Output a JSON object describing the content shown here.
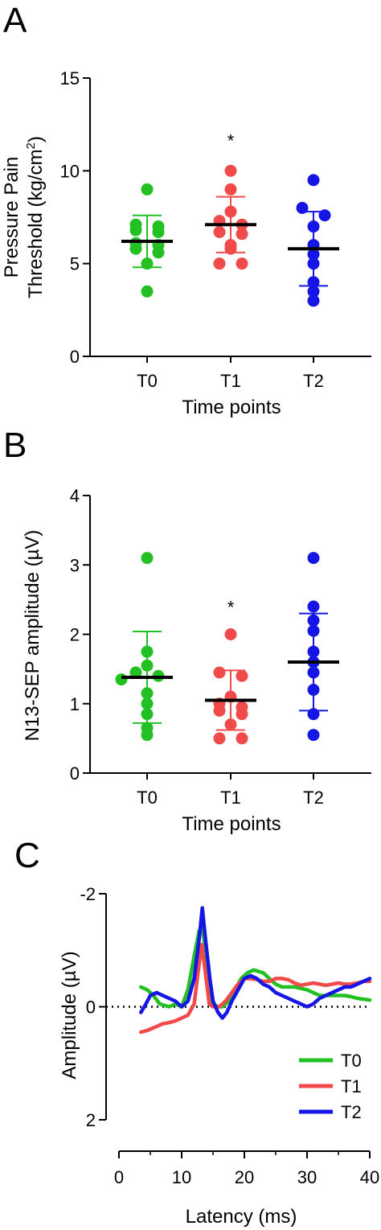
{
  "colors": {
    "T0": "#22c022",
    "T1": "#f04a4a",
    "T2": "#1515e6",
    "axis": "#000000"
  },
  "chart_data": [
    {
      "panel_label": "A",
      "type": "scatter",
      "categories": [
        "T0",
        "T1",
        "T2"
      ],
      "xlabel": "Time points",
      "ylabel_lines": [
        "Pressure Pain",
        "Threshold (kg/cm",
        "2",
        ")"
      ],
      "ylim": [
        0,
        15
      ],
      "yticks": [
        0,
        5,
        10,
        15
      ],
      "annotation": "*",
      "annotation_category": "T1",
      "annotation_y": 11.3,
      "series": [
        {
          "category": "T0",
          "points": [
            9.0,
            7.1,
            7.0,
            6.8,
            6.7,
            6.1,
            6.0,
            5.8,
            5.6,
            5.0,
            3.5
          ],
          "mean": 6.2,
          "sd": 1.4
        },
        {
          "category": "T1",
          "points": [
            10.0,
            9.0,
            7.8,
            7.3,
            7.1,
            6.7,
            6.6,
            6.0,
            5.8,
            5.0,
            5.0
          ],
          "mean": 7.1,
          "sd": 1.5
        },
        {
          "category": "T2",
          "points": [
            9.5,
            8.0,
            7.6,
            7.0,
            6.0,
            5.5,
            5.0,
            4.0,
            3.5,
            3.0
          ],
          "mean": 5.8,
          "sd": 2.0
        }
      ]
    },
    {
      "panel_label": "B",
      "type": "scatter",
      "categories": [
        "T0",
        "T1",
        "T2"
      ],
      "xlabel": "Time points",
      "ylabel": "N13-SEP amplitude (µV)",
      "ylim": [
        0,
        4
      ],
      "yticks": [
        0,
        1,
        2,
        3,
        4
      ],
      "annotation": "*",
      "annotation_category": "T1",
      "annotation_y": 2.3,
      "series": [
        {
          "category": "T0",
          "points": [
            3.1,
            1.75,
            1.55,
            1.45,
            1.4,
            1.35,
            1.15,
            1.0,
            0.85,
            0.65,
            0.55
          ],
          "mean": 1.38,
          "sd": 0.66
        },
        {
          "category": "T1",
          "points": [
            2.0,
            1.45,
            1.4,
            1.1,
            1.0,
            0.95,
            0.9,
            0.85,
            0.7,
            0.5,
            0.5
          ],
          "mean": 1.05,
          "sd": 0.43
        },
        {
          "category": "T2",
          "points": [
            3.1,
            2.4,
            2.2,
            2.05,
            1.75,
            1.6,
            1.45,
            1.2,
            0.85,
            0.55
          ],
          "mean": 1.6,
          "sd": 0.7
        }
      ]
    },
    {
      "panel_label": "C",
      "type": "line",
      "xlabel": "Latency (ms)",
      "ylabel": "Amplitude (µV)",
      "xlim": [
        0,
        40
      ],
      "xticks": [
        0,
        10,
        20,
        30,
        40
      ],
      "ylim": [
        -2,
        2
      ],
      "ytick_labels": [
        "-2",
        "0",
        "2"
      ],
      "yticks": [
        -2,
        0,
        2
      ],
      "y_inverted": true,
      "zero_line": "dotted",
      "legend_position": "bottom-right",
      "series": [
        {
          "name": "T0",
          "points": [
            [
              3.5,
              -0.35
            ],
            [
              4.5,
              -0.3
            ],
            [
              5.5,
              -0.2
            ],
            [
              6.5,
              -0.05
            ],
            [
              8,
              0.0
            ],
            [
              9,
              -0.05
            ],
            [
              10,
              0.0
            ],
            [
              11,
              -0.3
            ],
            [
              12,
              -0.9
            ],
            [
              12.8,
              -1.35
            ],
            [
              13.3,
              -1.4
            ],
            [
              13.8,
              -1.0
            ],
            [
              14.5,
              -0.4
            ],
            [
              15,
              -0.05
            ],
            [
              15.8,
              0.0
            ],
            [
              16.5,
              0.0
            ],
            [
              17.5,
              -0.1
            ],
            [
              18.5,
              -0.3
            ],
            [
              19.5,
              -0.5
            ],
            [
              20.5,
              -0.6
            ],
            [
              21.5,
              -0.65
            ],
            [
              23,
              -0.6
            ],
            [
              24,
              -0.5
            ],
            [
              25,
              -0.4
            ],
            [
              26,
              -0.35
            ],
            [
              27,
              -0.35
            ],
            [
              28,
              -0.35
            ],
            [
              30,
              -0.3
            ],
            [
              31,
              -0.25
            ],
            [
              32,
              -0.2
            ],
            [
              34,
              -0.2
            ],
            [
              36,
              -0.2
            ],
            [
              37,
              -0.18
            ],
            [
              38,
              -0.15
            ],
            [
              40,
              -0.12
            ]
          ]
        },
        {
          "name": "T1",
          "points": [
            [
              3.5,
              0.45
            ],
            [
              4.5,
              0.42
            ],
            [
              6,
              0.35
            ],
            [
              7,
              0.3
            ],
            [
              8,
              0.28
            ],
            [
              9,
              0.25
            ],
            [
              10,
              0.2
            ],
            [
              11,
              0.15
            ],
            [
              12,
              -0.05
            ],
            [
              12.6,
              -0.6
            ],
            [
              13.2,
              -1.1
            ],
            [
              13.8,
              -0.6
            ],
            [
              14.4,
              -0.05
            ],
            [
              15,
              0.0
            ],
            [
              16,
              0.0
            ],
            [
              17,
              -0.1
            ],
            [
              18,
              -0.25
            ],
            [
              19,
              -0.4
            ],
            [
              20,
              -0.5
            ],
            [
              21,
              -0.5
            ],
            [
              22,
              -0.48
            ],
            [
              23,
              -0.45
            ],
            [
              24,
              -0.45
            ],
            [
              25,
              -0.5
            ],
            [
              26,
              -0.5
            ],
            [
              27,
              -0.48
            ],
            [
              28,
              -0.42
            ],
            [
              29,
              -0.38
            ],
            [
              30,
              -0.4
            ],
            [
              31,
              -0.42
            ],
            [
              32,
              -0.4
            ],
            [
              33,
              -0.38
            ],
            [
              34,
              -0.4
            ],
            [
              35,
              -0.42
            ],
            [
              36,
              -0.4
            ],
            [
              37,
              -0.4
            ],
            [
              38,
              -0.42
            ],
            [
              39,
              -0.45
            ],
            [
              40,
              -0.45
            ]
          ]
        },
        {
          "name": "T2",
          "points": [
            [
              3.5,
              0.1
            ],
            [
              4.3,
              -0.05
            ],
            [
              5,
              -0.2
            ],
            [
              6,
              -0.25
            ],
            [
              7,
              -0.2
            ],
            [
              8,
              -0.15
            ],
            [
              9,
              -0.1
            ],
            [
              10,
              0.0
            ],
            [
              11,
              -0.1
            ],
            [
              12,
              -0.5
            ],
            [
              12.8,
              -1.2
            ],
            [
              13.3,
              -1.75
            ],
            [
              13.8,
              -1.2
            ],
            [
              14.5,
              -0.5
            ],
            [
              15,
              -0.1
            ],
            [
              15.8,
              0.1
            ],
            [
              16.5,
              0.2
            ],
            [
              17.2,
              0.1
            ],
            [
              18,
              -0.1
            ],
            [
              19,
              -0.3
            ],
            [
              20,
              -0.5
            ],
            [
              21,
              -0.55
            ],
            [
              22,
              -0.5
            ],
            [
              23,
              -0.4
            ],
            [
              24,
              -0.35
            ],
            [
              25,
              -0.25
            ],
            [
              26,
              -0.2
            ],
            [
              27,
              -0.15
            ],
            [
              28,
              -0.1
            ],
            [
              29,
              -0.05
            ],
            [
              30,
              0.0
            ],
            [
              31,
              -0.05
            ],
            [
              32,
              -0.15
            ],
            [
              33,
              -0.2
            ],
            [
              34,
              -0.25
            ],
            [
              35,
              -0.3
            ],
            [
              36,
              -0.35
            ],
            [
              37,
              -0.35
            ],
            [
              38,
              -0.4
            ],
            [
              39,
              -0.45
            ],
            [
              40,
              -0.5
            ]
          ]
        }
      ]
    }
  ]
}
